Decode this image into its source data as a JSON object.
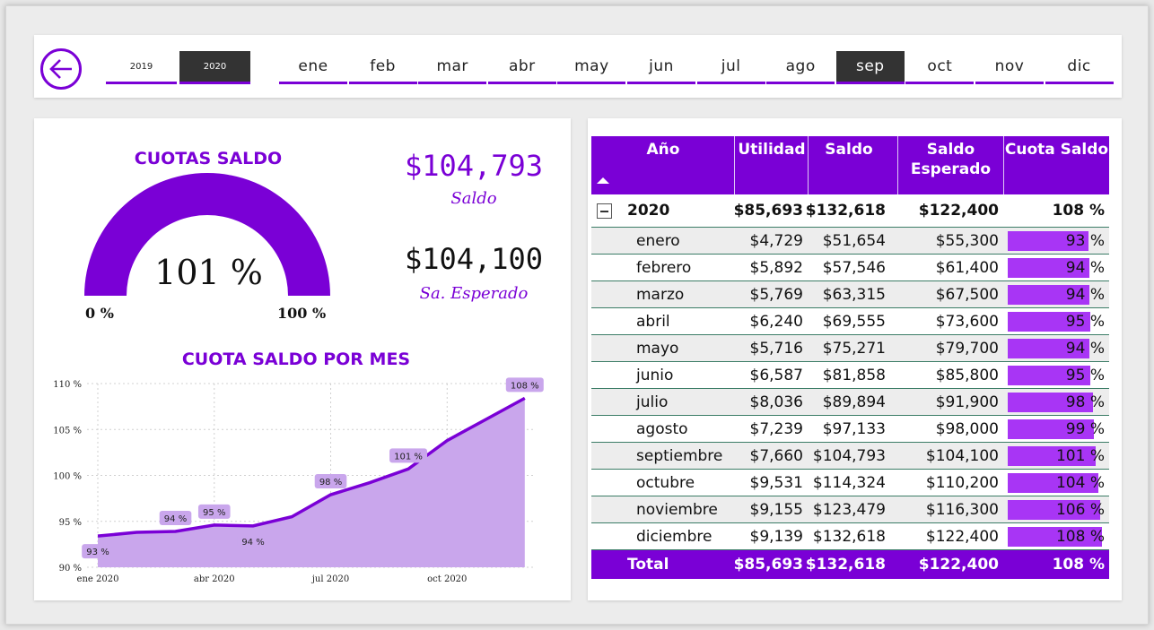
{
  "topbar": {
    "years": [
      "2019",
      "2020"
    ],
    "selected_year": "2020",
    "months": [
      "ene",
      "feb",
      "mar",
      "abr",
      "may",
      "jun",
      "jul",
      "ago",
      "sep",
      "oct",
      "nov",
      "dic"
    ],
    "selected_month": "sep",
    "accent": "#7a00d6"
  },
  "gauge": {
    "title": "CUOTAS SALDO",
    "value_label": "101 %",
    "min_label": "0 %",
    "max_label": "100 %",
    "value": 1.01
  },
  "kpis": {
    "saldo_value": "$104,793",
    "saldo_label": "Saldo",
    "esperado_value": "$104,100",
    "esperado_label": "Sa. Esperado"
  },
  "chart_data": {
    "type": "area",
    "title": "CUOTA SALDO POR MES",
    "xlabel": "",
    "ylabel": "",
    "x_ticks": [
      "ene 2020",
      "abr 2020",
      "jul 2020",
      "oct 2020"
    ],
    "y_ticks": [
      "90 %",
      "95 %",
      "100 %",
      "105 %",
      "110 %"
    ],
    "ylim": [
      90,
      110
    ],
    "x": [
      "ene",
      "feb",
      "mar",
      "abr",
      "may",
      "jun",
      "jul",
      "ago",
      "sep",
      "oct",
      "nov",
      "dic"
    ],
    "values": [
      93.4,
      93.8,
      93.9,
      94.6,
      94.5,
      95.5,
      97.9,
      99.2,
      100.7,
      103.8,
      106.1,
      108.4
    ],
    "data_labels": [
      {
        "index": 0,
        "text": "93 %"
      },
      {
        "index": 2,
        "text": "94 %"
      },
      {
        "index": 3,
        "text": "95 %"
      },
      {
        "index": 4,
        "text": "94 %"
      },
      {
        "index": 6,
        "text": "98 %"
      },
      {
        "index": 8,
        "text": "101 %"
      },
      {
        "index": 11,
        "text": "108 %"
      }
    ],
    "grid": true,
    "fill_color": "#c9a6ec",
    "line_color": "#7a00d6"
  },
  "table": {
    "headers": {
      "anio": "Año",
      "utilidad": "Utilidad",
      "saldo": "Saldo",
      "saldo_esperado_1": "Saldo",
      "saldo_esperado_2": "Esperado",
      "cuota": "Cuota Saldo"
    },
    "year_row": {
      "label": "2020",
      "utilidad": "$85,693",
      "saldo": "$132,618",
      "esperado": "$122,400",
      "cuota": "108 %"
    },
    "rows": [
      {
        "mes": "enero",
        "utilidad": "$4,729",
        "saldo": "$51,654",
        "esperado": "$55,300",
        "cuota": "93 %",
        "pct": 0.93
      },
      {
        "mes": "febrero",
        "utilidad": "$5,892",
        "saldo": "$57,546",
        "esperado": "$61,400",
        "cuota": "94 %",
        "pct": 0.94
      },
      {
        "mes": "marzo",
        "utilidad": "$5,769",
        "saldo": "$63,315",
        "esperado": "$67,500",
        "cuota": "94 %",
        "pct": 0.94
      },
      {
        "mes": "abril",
        "utilidad": "$6,240",
        "saldo": "$69,555",
        "esperado": "$73,600",
        "cuota": "95 %",
        "pct": 0.95
      },
      {
        "mes": "mayo",
        "utilidad": "$5,716",
        "saldo": "$75,271",
        "esperado": "$79,700",
        "cuota": "94 %",
        "pct": 0.94
      },
      {
        "mes": "junio",
        "utilidad": "$6,587",
        "saldo": "$81,858",
        "esperado": "$85,800",
        "cuota": "95 %",
        "pct": 0.95
      },
      {
        "mes": "julio",
        "utilidad": "$8,036",
        "saldo": "$89,894",
        "esperado": "$91,900",
        "cuota": "98 %",
        "pct": 0.98
      },
      {
        "mes": "agosto",
        "utilidad": "$7,239",
        "saldo": "$97,133",
        "esperado": "$98,000",
        "cuota": "99 %",
        "pct": 0.99
      },
      {
        "mes": "septiembre",
        "utilidad": "$7,660",
        "saldo": "$104,793",
        "esperado": "$104,100",
        "cuota": "101 %",
        "pct": 1.01
      },
      {
        "mes": "octubre",
        "utilidad": "$9,531",
        "saldo": "$114,324",
        "esperado": "$110,200",
        "cuota": "104 %",
        "pct": 1.04
      },
      {
        "mes": "noviembre",
        "utilidad": "$9,155",
        "saldo": "$123,479",
        "esperado": "$116,300",
        "cuota": "106 %",
        "pct": 1.06
      },
      {
        "mes": "diciembre",
        "utilidad": "$9,139",
        "saldo": "$132,618",
        "esperado": "$122,400",
        "cuota": "108 %",
        "pct": 1.08
      }
    ],
    "total_row": {
      "label": "Total",
      "utilidad": "$85,693",
      "saldo": "$132,618",
      "esperado": "$122,400",
      "cuota": "108 %"
    }
  }
}
